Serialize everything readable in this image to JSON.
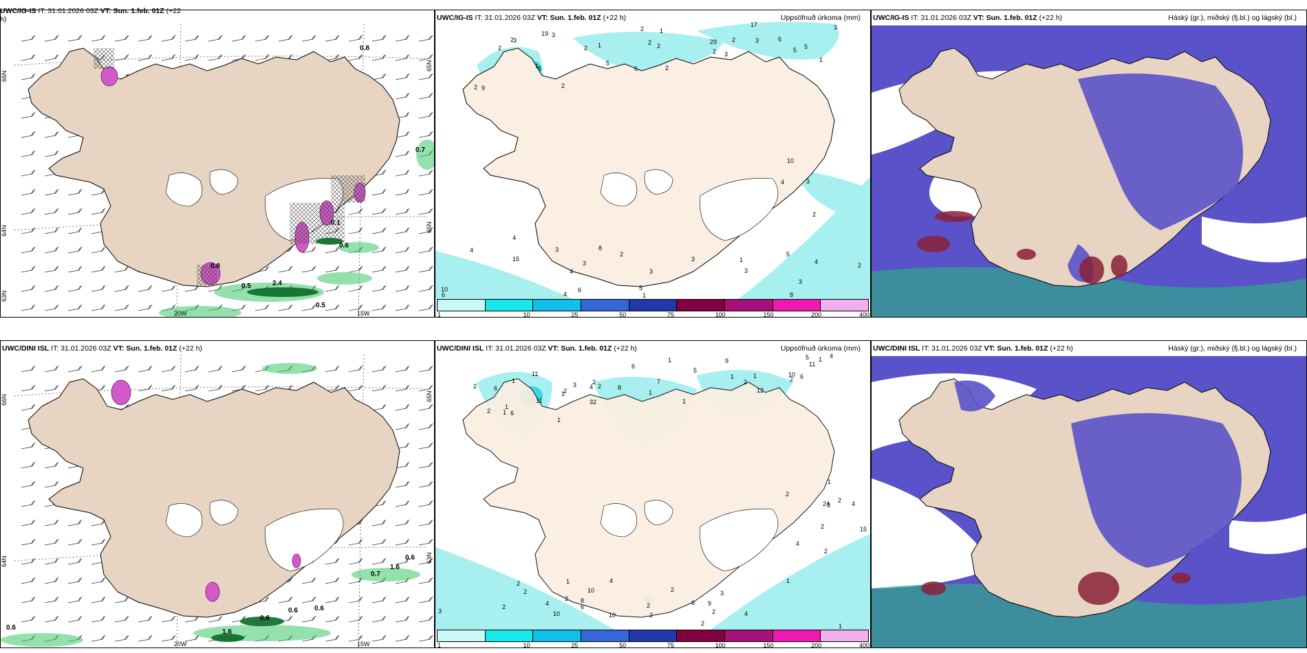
{
  "colors": {
    "land": "#e8d4c2",
    "land_light": "#fbeee2",
    "snow": "#ffffff",
    "precip": "#a8f0f0",
    "precip_dark": "#3ad8e0",
    "green": "#3cc86a",
    "green_dark": "#0b6a28",
    "pink": "#d25ac8",
    "purple": "#5a52c8",
    "dark_red": "#8a2038",
    "teal": "#2fa88c"
  },
  "colorbar": {
    "swatches": [
      "#c8f8f8",
      "#18e8ec",
      "#10c0e8",
      "#3468d8",
      "#2038a8",
      "#800040",
      "#a8107a",
      "#f018b0",
      "#f0b0f0"
    ],
    "ticks": [
      "1",
      "10",
      "25",
      "50",
      "75",
      "100",
      "150",
      "200",
      "400"
    ]
  },
  "icons": {
    "wind_barb": "wind-barb-icon"
  },
  "rows": [
    {
      "left": {
        "prefix": "UWC/IG-IS",
        "it": " IT: 31.01.2026 03Z ",
        "vt": "VT: Sun. 1.feb. 01Z",
        "lead": " (+22",
        "lead_wrap": "h)",
        "lat_labels": [
          "66N",
          "64N",
          "63N",
          "65N",
          "65N"
        ],
        "lon_labels": [
          "20W",
          "15W"
        ],
        "value_labels": [
          "0.8",
          "0.7",
          "0.1",
          "0.6",
          "2.4",
          "0.5",
          "0.5",
          "0.8"
        ]
      },
      "middle": {
        "prefix": "UWC/IG-IS",
        "it": " IT: 31.01.2026 03Z ",
        "vt": "VT: Sun. 1.feb. 01Z",
        "lead": " (+22 h)",
        "right": "Uppsöfnuð úrkoma (mm)",
        "numbers": [
          "2",
          "2",
          "3",
          "2",
          "3",
          "4",
          "2",
          "2",
          "2",
          "3",
          "10",
          "6",
          "3",
          "2",
          "5",
          "10",
          "4",
          "3",
          "1",
          "29",
          "3",
          "4",
          "15",
          "3",
          "19",
          "5",
          "1",
          "2",
          "4",
          "1",
          "2",
          "1",
          "5",
          "3",
          "2",
          "3",
          "2",
          "6",
          "6",
          "5",
          "8",
          "1",
          "5",
          "2",
          "3",
          "8",
          "6",
          "5",
          "3",
          "2",
          "2",
          "4",
          "4",
          "3",
          "9",
          "1",
          "17"
        ]
      },
      "right": {
        "prefix": "UWC/IG-IS",
        "it": " IT: 31.01.2026 03Z ",
        "vt": "VT: Sun. 1.feb. 01Z",
        "lead": " (+22 h)",
        "right": "Háský (gr.), miðský (fj.bl.) og lágský (bl.)"
      }
    },
    {
      "left": {
        "prefix": "UWC/DINI ISL",
        "it": " IT: 31.01.2026 03Z ",
        "vt": "VT: Sun. 1.feb. 01Z",
        "lead": " (+22 h)",
        "lat_labels": [
          "66N",
          "64N",
          "65N",
          "63N"
        ],
        "lon_labels": [
          "20W",
          "15W"
        ],
        "value_labels": [
          "0.6",
          "1.6",
          "0.7",
          "0.6",
          "0.6",
          "0.6",
          "1.6",
          "0.6"
        ]
      },
      "middle": {
        "prefix": "UWC/DINI ISL",
        "it": " IT: 31.01.2026 03Z ",
        "vt": "VT: Sun. 1.feb. 01Z",
        "lead": " (+22 h)",
        "right": "Uppsöfnuð úrkoma (mm)",
        "numbers": [
          "1",
          "2",
          "2",
          "2",
          "10",
          "2",
          "2",
          "8",
          "11",
          "24",
          "1",
          "2",
          "1",
          "6",
          "10",
          "1",
          "8",
          "2",
          "2",
          "32",
          "4",
          "3",
          "10",
          "4",
          "2",
          "2",
          "1",
          "2",
          "2",
          "3",
          "11",
          "4",
          "2",
          "2",
          "2",
          "2",
          "1",
          "1",
          "1",
          "1",
          "2",
          "2",
          "1",
          "1",
          "1",
          "4",
          "4",
          "2",
          "11",
          "1",
          "6",
          "15",
          "6",
          "9",
          "1",
          "3",
          "12",
          "2",
          "4",
          "6",
          "6",
          "5",
          "9",
          "1",
          "3",
          "10",
          "6",
          "7",
          "5",
          "4"
        ]
      },
      "right": {
        "prefix": "UWC/DINI ISL",
        "it": " IT: 31.01.2026 03Z ",
        "vt": "VT: Sun. 1.feb. 01Z",
        "lead": " (+22 h)",
        "right": "Háský (gr.), miðský (fj.bl.) og lágský (bl.)"
      }
    }
  ]
}
